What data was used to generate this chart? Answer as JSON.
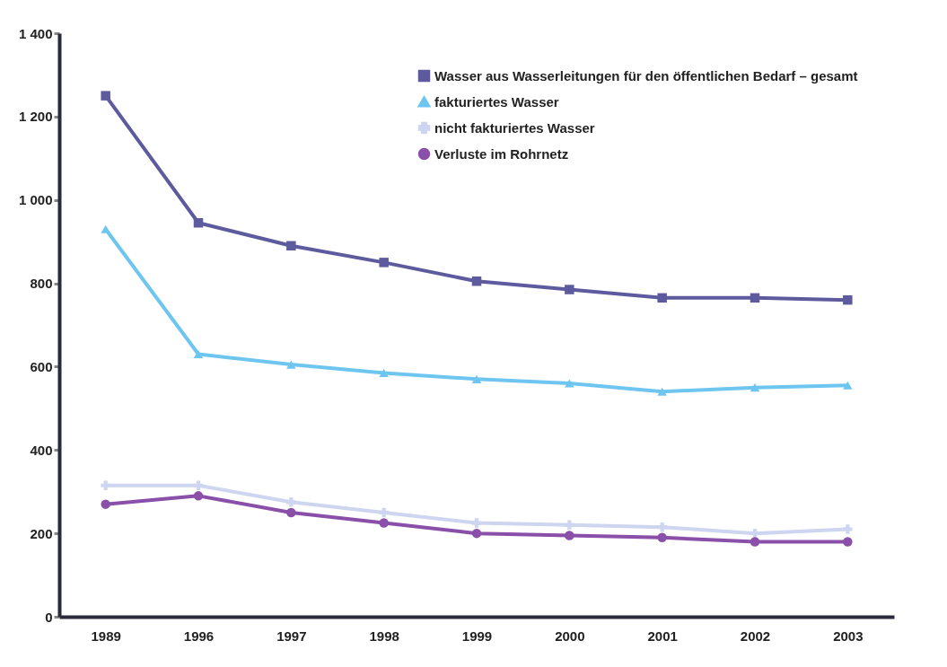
{
  "chart_data": {
    "type": "line",
    "categories": [
      "1989",
      "1996",
      "1997",
      "1998",
      "1999",
      "2000",
      "2001",
      "2002",
      "2003"
    ],
    "series": [
      {
        "name": "Wasser aus Wasserleitungen für den öffentlichen Bedarf – gesamt",
        "color": "#5e5a9e",
        "marker": "square",
        "values": [
          1250,
          945,
          890,
          850,
          805,
          785,
          765,
          765,
          760
        ]
      },
      {
        "name": "fakturiertes Wasser",
        "color": "#6ec6f0",
        "marker": "triangle",
        "values": [
          930,
          630,
          605,
          585,
          570,
          560,
          540,
          550,
          555
        ]
      },
      {
        "name": "nicht fakturiertes Wasser",
        "color": "#cdd5f0",
        "marker": "cross",
        "values": [
          315,
          315,
          275,
          250,
          225,
          220,
          215,
          200,
          210
        ]
      },
      {
        "name": "Verluste im Rohrnetz",
        "color": "#8a4fa8",
        "marker": "circle",
        "values": [
          270,
          290,
          250,
          225,
          200,
          195,
          190,
          180,
          180
        ]
      }
    ],
    "ylim": [
      0,
      1400
    ],
    "yticks": [
      0,
      200,
      400,
      600,
      800,
      {
        "value": 1000,
        "label": "1 000"
      },
      {
        "value": 1200,
        "label": "1 200"
      },
      {
        "value": 1400,
        "label": "1 400"
      }
    ],
    "grid": false,
    "legend": "top right"
  }
}
